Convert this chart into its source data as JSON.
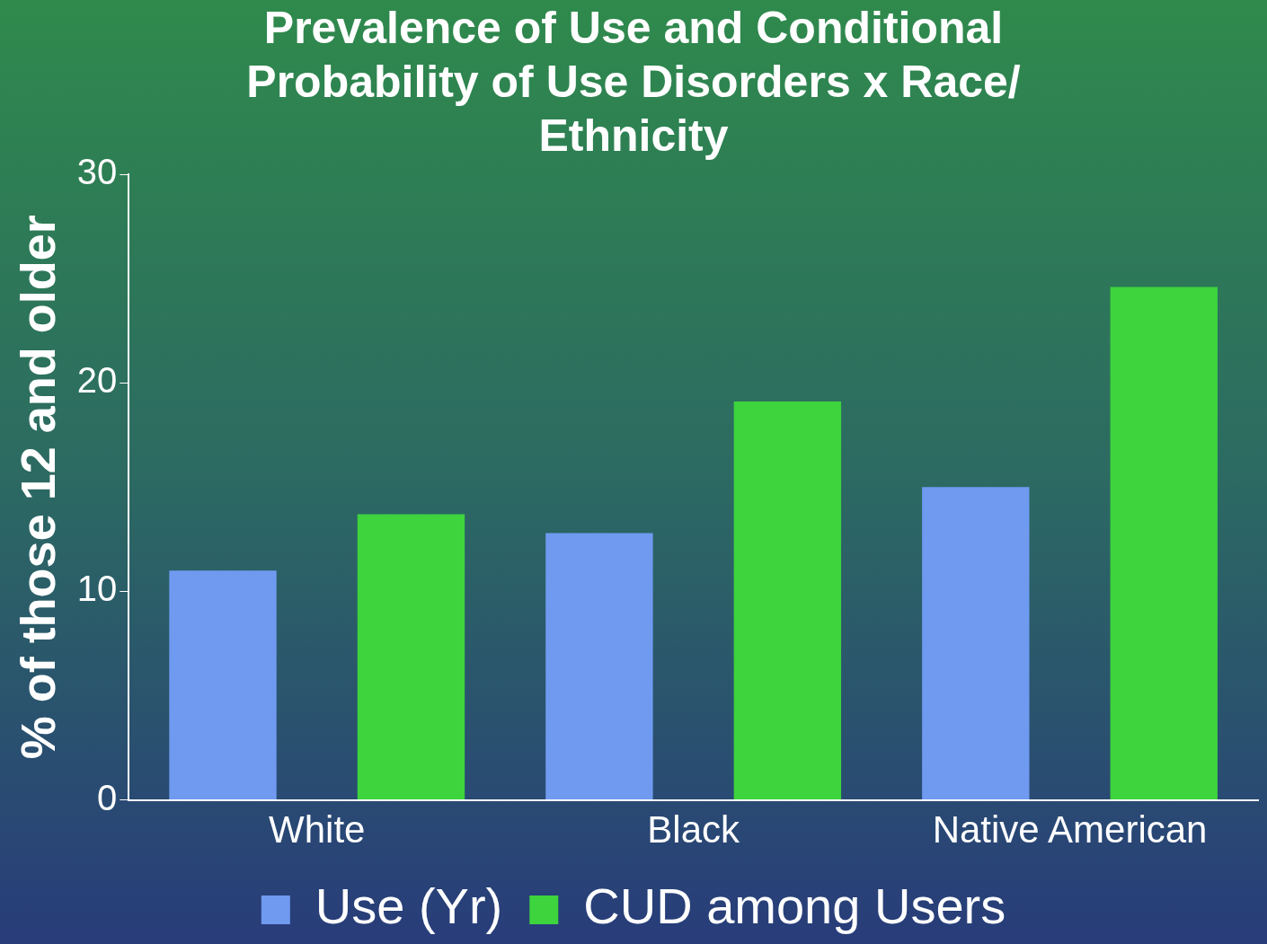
{
  "chart_data": {
    "type": "bar",
    "title": [
      "Prevalence of Use and Conditional",
      "Probability of Use Disorders x Race/",
      "Ethnicity"
    ],
    "ylabel": "% of those 12 and older",
    "categories": [
      "White",
      "Black",
      "Native American"
    ],
    "series": [
      {
        "name": "Use (Yr)",
        "color": "#6f9af0",
        "values": [
          11.0,
          12.8,
          15.0
        ]
      },
      {
        "name": "CUD among Users",
        "color": "#3dd43d",
        "values": [
          13.7,
          19.1,
          24.6
        ]
      }
    ],
    "ylim": [
      0,
      30
    ],
    "yticks": [
      0,
      10,
      20,
      30
    ],
    "grid": false,
    "legend": "bottom"
  }
}
